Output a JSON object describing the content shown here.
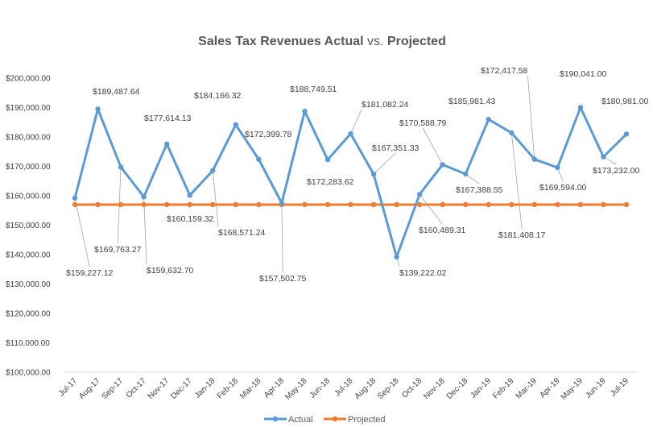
{
  "chart_data": {
    "type": "line",
    "title": {
      "part1": "Sales Tax Revenues Actual",
      "part2": " vs. ",
      "part3": "Projected"
    },
    "categories": [
      "Jul-17",
      "Aug-17",
      "Sep-17",
      "Oct-17",
      "Nov-17",
      "Dec-17",
      "Jan-18",
      "Feb-18",
      "Mar-18",
      "Apr-18",
      "May-18",
      "Jun-18",
      "Jul-18",
      "Aug-18",
      "Sep-18",
      "Oct-18",
      "Nov-18",
      "Dec-18",
      "Jan-19",
      "Feb-19",
      "Mar-19",
      "Apr-19",
      "May-19",
      "Jun-19",
      "Jul-19"
    ],
    "series": [
      {
        "name": "Actual",
        "color": "#5B9BD5",
        "values": [
          159227.12,
          189487.64,
          169763.27,
          159632.7,
          177614.13,
          160159.32,
          168571.24,
          184166.32,
          172399.78,
          157502.75,
          188749.51,
          172283.62,
          181082.24,
          167351.33,
          139222.02,
          160489.31,
          170588.79,
          167388.55,
          185981.43,
          181408.17,
          172417.58,
          169594.0,
          190041.0,
          173232.0,
          180981.0
        ],
        "labels": [
          "$159,227.12",
          "$189,487.64",
          "$169,763.27",
          "$159,632.70",
          "$177,614.13",
          "$160,159.32",
          "$168,571.24",
          "$184,166.32",
          "$172,399.78",
          "$157,502.75",
          "$188,749.51",
          "$172,283.62",
          "$181,082.24",
          "$167,351.33",
          "$139,222.02",
          "$160,489.31",
          "$170,588.79",
          "$167,388.55",
          "$185,981.43",
          "$181,408.17",
          "$172,417.58",
          "$169,594.00",
          "$190,041.00",
          "$173,232.00",
          "$180,981.00"
        ]
      },
      {
        "name": "Projected",
        "color": "#ED7D31",
        "values": [
          157000,
          157000,
          157000,
          157000,
          157000,
          157000,
          157000,
          157000,
          157000,
          157000,
          157000,
          157000,
          157000,
          157000,
          157000,
          157000,
          157000,
          157000,
          157000,
          157000,
          157000,
          157000,
          157000,
          157000,
          157000
        ]
      }
    ],
    "yticks": [
      100000,
      110000,
      120000,
      130000,
      140000,
      150000,
      160000,
      170000,
      180000,
      190000,
      200000
    ],
    "ytick_labels": [
      "$100,000.00",
      "$110,000.00",
      "$120,000.00",
      "$130,000.00",
      "$140,000.00",
      "$150,000.00",
      "$160,000.00",
      "$170,000.00",
      "$180,000.00",
      "$190,000.00",
      "$200,000.00"
    ],
    "ylim": [
      100000,
      200000
    ],
    "grid": false,
    "legend": "bottom-center"
  }
}
